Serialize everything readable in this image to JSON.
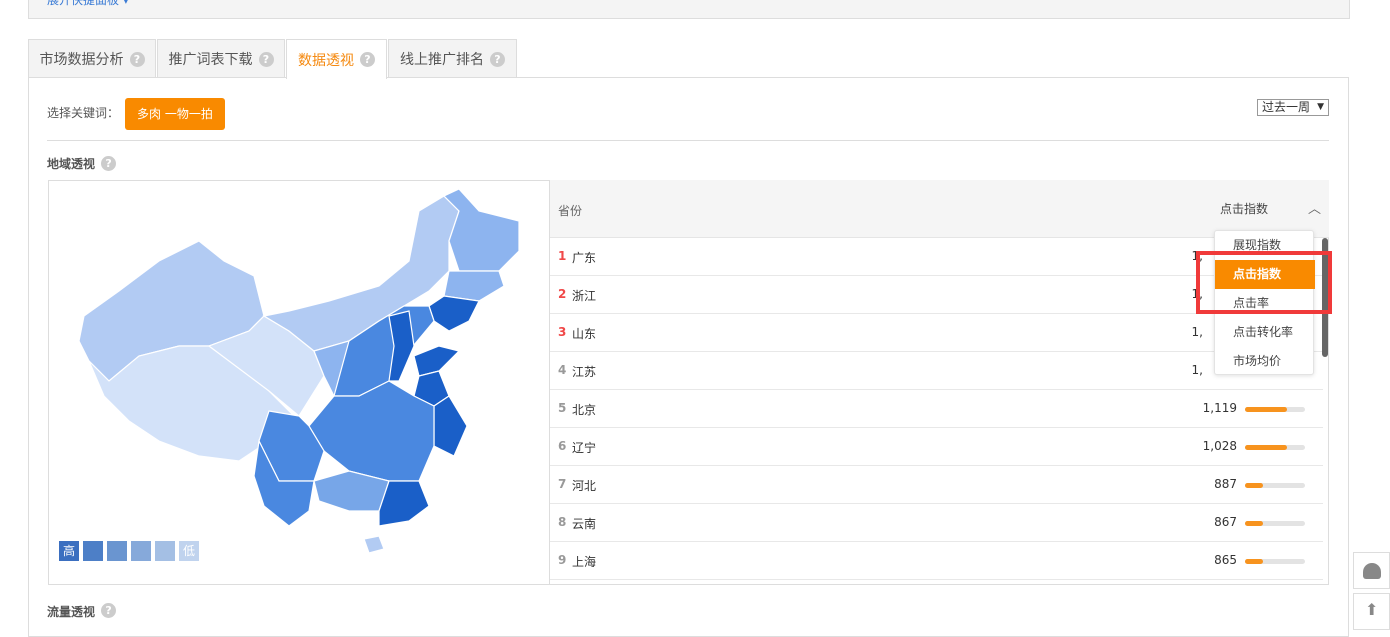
{
  "top_panel": {
    "link": "展开快捷面板 ▾"
  },
  "tabs": [
    {
      "label": "市场数据分析",
      "active": false
    },
    {
      "label": "推广词表下载",
      "active": false
    },
    {
      "label": "数据透视",
      "active": true
    },
    {
      "label": "线上推广排名",
      "active": false
    }
  ],
  "keyword": {
    "label": "选择关键词：",
    "value": "多肉 一物一拍"
  },
  "period": {
    "value": "过去一周",
    "arrow": "▼"
  },
  "region_section": {
    "title": "地域透视",
    "help": "?"
  },
  "legend": {
    "high": "高",
    "low": "低",
    "colors": [
      "#3b6fc0",
      "#4d7fc7",
      "#6a95d0",
      "#86a9da",
      "#a4bfe4",
      "#c0d3ee"
    ]
  },
  "table": {
    "col_province": "省份",
    "col_metric": "点击指数",
    "rows": [
      {
        "rank": "1",
        "province": "广东",
        "value": "1,",
        "bar": null
      },
      {
        "rank": "2",
        "province": "浙江",
        "value": "1,",
        "bar": null
      },
      {
        "rank": "3",
        "province": "山东",
        "value": "1,",
        "bar": null
      },
      {
        "rank": "4",
        "province": "江苏",
        "value": "1,",
        "bar": null
      },
      {
        "rank": "5",
        "province": "北京",
        "value": "1,119",
        "bar": 0.7
      },
      {
        "rank": "6",
        "province": "辽宁",
        "value": "1,028",
        "bar": 0.7
      },
      {
        "rank": "7",
        "province": "河北",
        "value": "887",
        "bar": 0.3
      },
      {
        "rank": "8",
        "province": "云南",
        "value": "867",
        "bar": 0.3
      },
      {
        "rank": "9",
        "province": "上海",
        "value": "865",
        "bar": 0.3
      }
    ]
  },
  "metric_dropdown": {
    "options": [
      "展现指数",
      "点击指数",
      "点击率",
      "点击转化率",
      "市场均价"
    ],
    "selected": "点击指数"
  },
  "flow_section": {
    "title": "流量透视"
  },
  "colors": {
    "accent": "#f98a00",
    "highlight": "#f03a3a",
    "map_dark": "#1a5fc8"
  }
}
